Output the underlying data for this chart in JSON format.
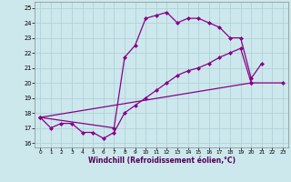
{
  "xlabel": "Windchill (Refroidissement éolien,°C)",
  "xlim": [
    -0.5,
    23.5
  ],
  "ylim": [
    15.7,
    25.4
  ],
  "xticks": [
    0,
    1,
    2,
    3,
    4,
    5,
    6,
    7,
    8,
    9,
    10,
    11,
    12,
    13,
    14,
    15,
    16,
    17,
    18,
    19,
    20,
    21,
    22,
    23
  ],
  "yticks": [
    16,
    17,
    18,
    19,
    20,
    21,
    22,
    23,
    24,
    25
  ],
  "bg_color": "#cce8ec",
  "grid_color": "#aacdd4",
  "line_color": "#880088",
  "line1_x": [
    0,
    1,
    2,
    3,
    4,
    5,
    6,
    7,
    8,
    9,
    10,
    11,
    12,
    13,
    14,
    15,
    16,
    17,
    18,
    19,
    20
  ],
  "line1_y": [
    17.7,
    17.0,
    17.3,
    17.3,
    16.7,
    16.7,
    16.3,
    16.7,
    18.0,
    18.5,
    19.0,
    19.5,
    20.0,
    20.5,
    20.8,
    21.0,
    21.3,
    21.7,
    22.0,
    22.3,
    20.0
  ],
  "line2_x": [
    0,
    7,
    8,
    9,
    10,
    11,
    12,
    13,
    14,
    15,
    16,
    17,
    18,
    19,
    20,
    21
  ],
  "line2_y": [
    17.7,
    17.0,
    21.7,
    22.5,
    24.3,
    24.5,
    24.7,
    24.0,
    24.3,
    24.3,
    24.0,
    23.7,
    23.0,
    23.0,
    20.3,
    21.3
  ],
  "line3_x": [
    0,
    20,
    23
  ],
  "line3_y": [
    17.7,
    20.0,
    20.0
  ]
}
